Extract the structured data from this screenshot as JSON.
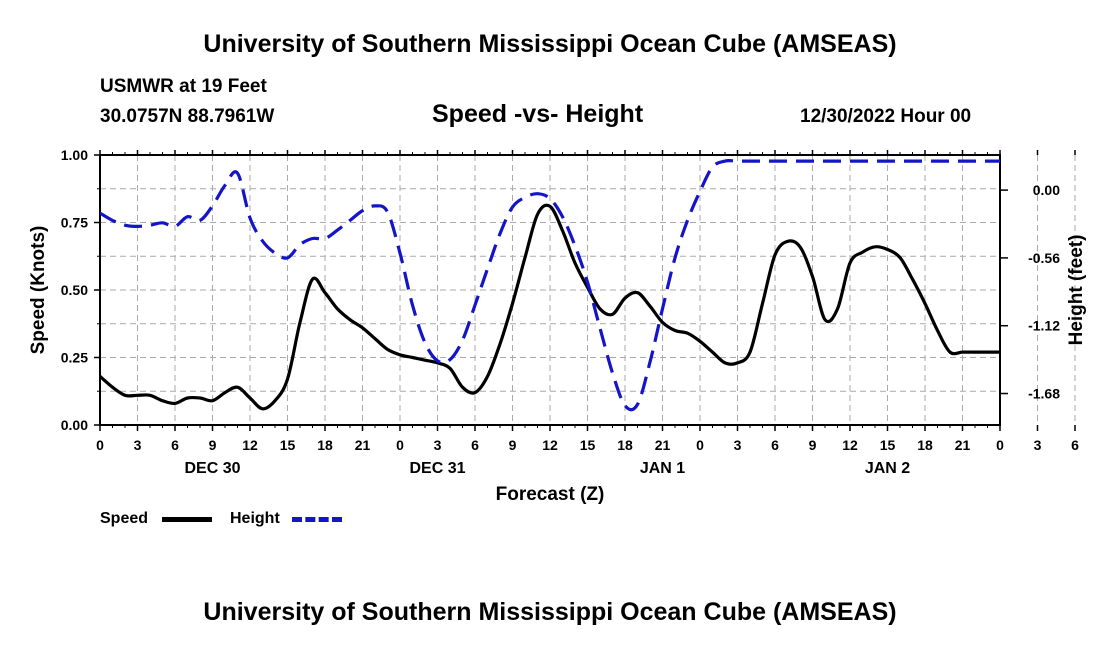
{
  "header": {
    "title": "University of Southern Mississippi Ocean Cube (AMSEAS)",
    "station": "USMWR at 19 Feet",
    "coords": "30.0757N  88.7961W",
    "subtitle": "Speed -vs- Height",
    "datetime": "12/30/2022 Hour 00"
  },
  "footer": {
    "title": "University of Southern Mississippi Ocean Cube (AMSEAS)"
  },
  "legend": {
    "speed_label": "Speed",
    "height_label": "Height"
  },
  "colors": {
    "speed": "#000000",
    "height": "#1414c8",
    "grid": "#aaaaaa"
  },
  "chart_data": {
    "type": "line",
    "title": "Speed -vs- Height",
    "xlabel": "Forecast (Z)",
    "ylabel": "Speed (Knots)",
    "y2label": "Height (feet)",
    "xlim": [
      0,
      72
    ],
    "ylim": [
      0,
      1.0
    ],
    "y2lim": [
      -1.94,
      0.29
    ],
    "x_tick_labels": [
      "0",
      "3",
      "6",
      "9",
      "12",
      "15",
      "18",
      "21",
      "0",
      "3",
      "6",
      "9",
      "12",
      "15",
      "18",
      "21",
      "0",
      "3",
      "6",
      "9",
      "12",
      "15",
      "18",
      "21",
      "0",
      "3",
      "6",
      "9",
      "12",
      "15",
      "18",
      "21",
      "0"
    ],
    "day_labels": [
      {
        "label": "DEC 30",
        "hour": 9
      },
      {
        "label": "DEC 31",
        "hour": 27
      },
      {
        "label": "JAN 1",
        "hour": 45
      },
      {
        "label": "JAN 2",
        "hour": 63
      }
    ],
    "y_ticks": [
      0.0,
      0.25,
      0.5,
      0.75,
      1.0
    ],
    "y_tick_labels": [
      "0.00",
      "0.25",
      "0.50",
      "0.75",
      "1.00"
    ],
    "y2_ticks": [
      0.0,
      -0.56,
      -1.12,
      -1.68
    ],
    "y2_tick_labels": [
      "0.00",
      "-0.56",
      "-1.12",
      "-1.68"
    ],
    "series": [
      {
        "name": "Speed",
        "axis": "left",
        "style": "solid",
        "x": [
          0,
          1,
          2,
          3,
          4,
          5,
          6,
          7,
          8,
          9,
          10,
          11,
          12,
          13,
          14,
          15,
          16,
          17,
          18,
          19,
          20,
          21,
          22,
          23,
          24,
          25,
          26,
          27,
          28,
          29,
          30,
          31,
          32,
          33,
          34,
          35,
          36,
          37,
          38,
          39,
          40,
          41,
          42,
          43,
          44,
          45,
          46,
          47,
          48,
          49,
          50,
          51,
          52,
          53,
          54,
          55,
          56,
          57,
          58,
          59,
          60,
          61,
          62,
          63,
          64,
          65,
          66,
          67,
          68,
          69,
          70,
          71,
          72
        ],
        "values": [
          0.18,
          0.14,
          0.11,
          0.11,
          0.11,
          0.09,
          0.08,
          0.1,
          0.1,
          0.09,
          0.12,
          0.14,
          0.1,
          0.06,
          0.09,
          0.17,
          0.38,
          0.54,
          0.49,
          0.43,
          0.39,
          0.36,
          0.32,
          0.28,
          0.26,
          0.25,
          0.24,
          0.23,
          0.21,
          0.14,
          0.12,
          0.18,
          0.3,
          0.45,
          0.62,
          0.78,
          0.81,
          0.72,
          0.6,
          0.51,
          0.43,
          0.41,
          0.47,
          0.49,
          0.44,
          0.38,
          0.35,
          0.34,
          0.31,
          0.27,
          0.23,
          0.23,
          0.27,
          0.45,
          0.63,
          0.68,
          0.66,
          0.55,
          0.39,
          0.43,
          0.6,
          0.64,
          0.66,
          0.65,
          0.62,
          0.54,
          0.45,
          0.35,
          0.27,
          0.27,
          0.27,
          0.27,
          0.27
        ]
      },
      {
        "name": "Height",
        "axis": "right",
        "style": "dashed",
        "x": [
          0,
          1,
          2,
          3,
          4,
          5,
          6,
          7,
          8,
          9,
          10,
          11,
          12,
          13,
          14,
          15,
          16,
          17,
          18,
          19,
          20,
          21,
          22,
          23,
          24,
          25,
          26,
          27,
          28,
          29,
          30,
          31,
          32,
          33,
          34,
          35,
          36,
          37,
          38,
          39,
          40,
          41,
          42,
          43,
          44,
          45,
          46,
          47,
          48,
          49,
          50,
          51,
          52,
          53,
          54,
          55,
          56,
          57,
          58,
          59,
          60,
          61,
          62,
          63,
          64,
          65,
          66,
          67,
          68,
          69,
          70,
          71,
          72
        ],
        "values": [
          -0.19,
          -0.25,
          -0.29,
          -0.3,
          -0.29,
          -0.27,
          -0.3,
          -0.22,
          -0.25,
          -0.13,
          0.04,
          0.14,
          -0.23,
          -0.42,
          -0.52,
          -0.56,
          -0.45,
          -0.4,
          -0.4,
          -0.33,
          -0.25,
          -0.17,
          -0.13,
          -0.18,
          -0.52,
          -0.95,
          -1.26,
          -1.41,
          -1.4,
          -1.24,
          -0.95,
          -0.65,
          -0.36,
          -0.14,
          -0.06,
          -0.03,
          -0.07,
          -0.22,
          -0.46,
          -0.76,
          -1.14,
          -1.51,
          -1.78,
          -1.77,
          -1.42,
          -0.98,
          -0.56,
          -0.25,
          -0.01,
          0.19,
          0.24,
          0.24,
          0.24,
          0.24,
          0.24,
          0.24,
          0.24,
          0.24,
          0.24,
          0.24,
          0.24,
          0.24,
          0.24,
          0.24,
          0.24,
          0.24,
          0.24,
          0.24,
          0.24,
          0.24,
          0.24,
          0.24,
          0.24
        ]
      }
    ]
  }
}
